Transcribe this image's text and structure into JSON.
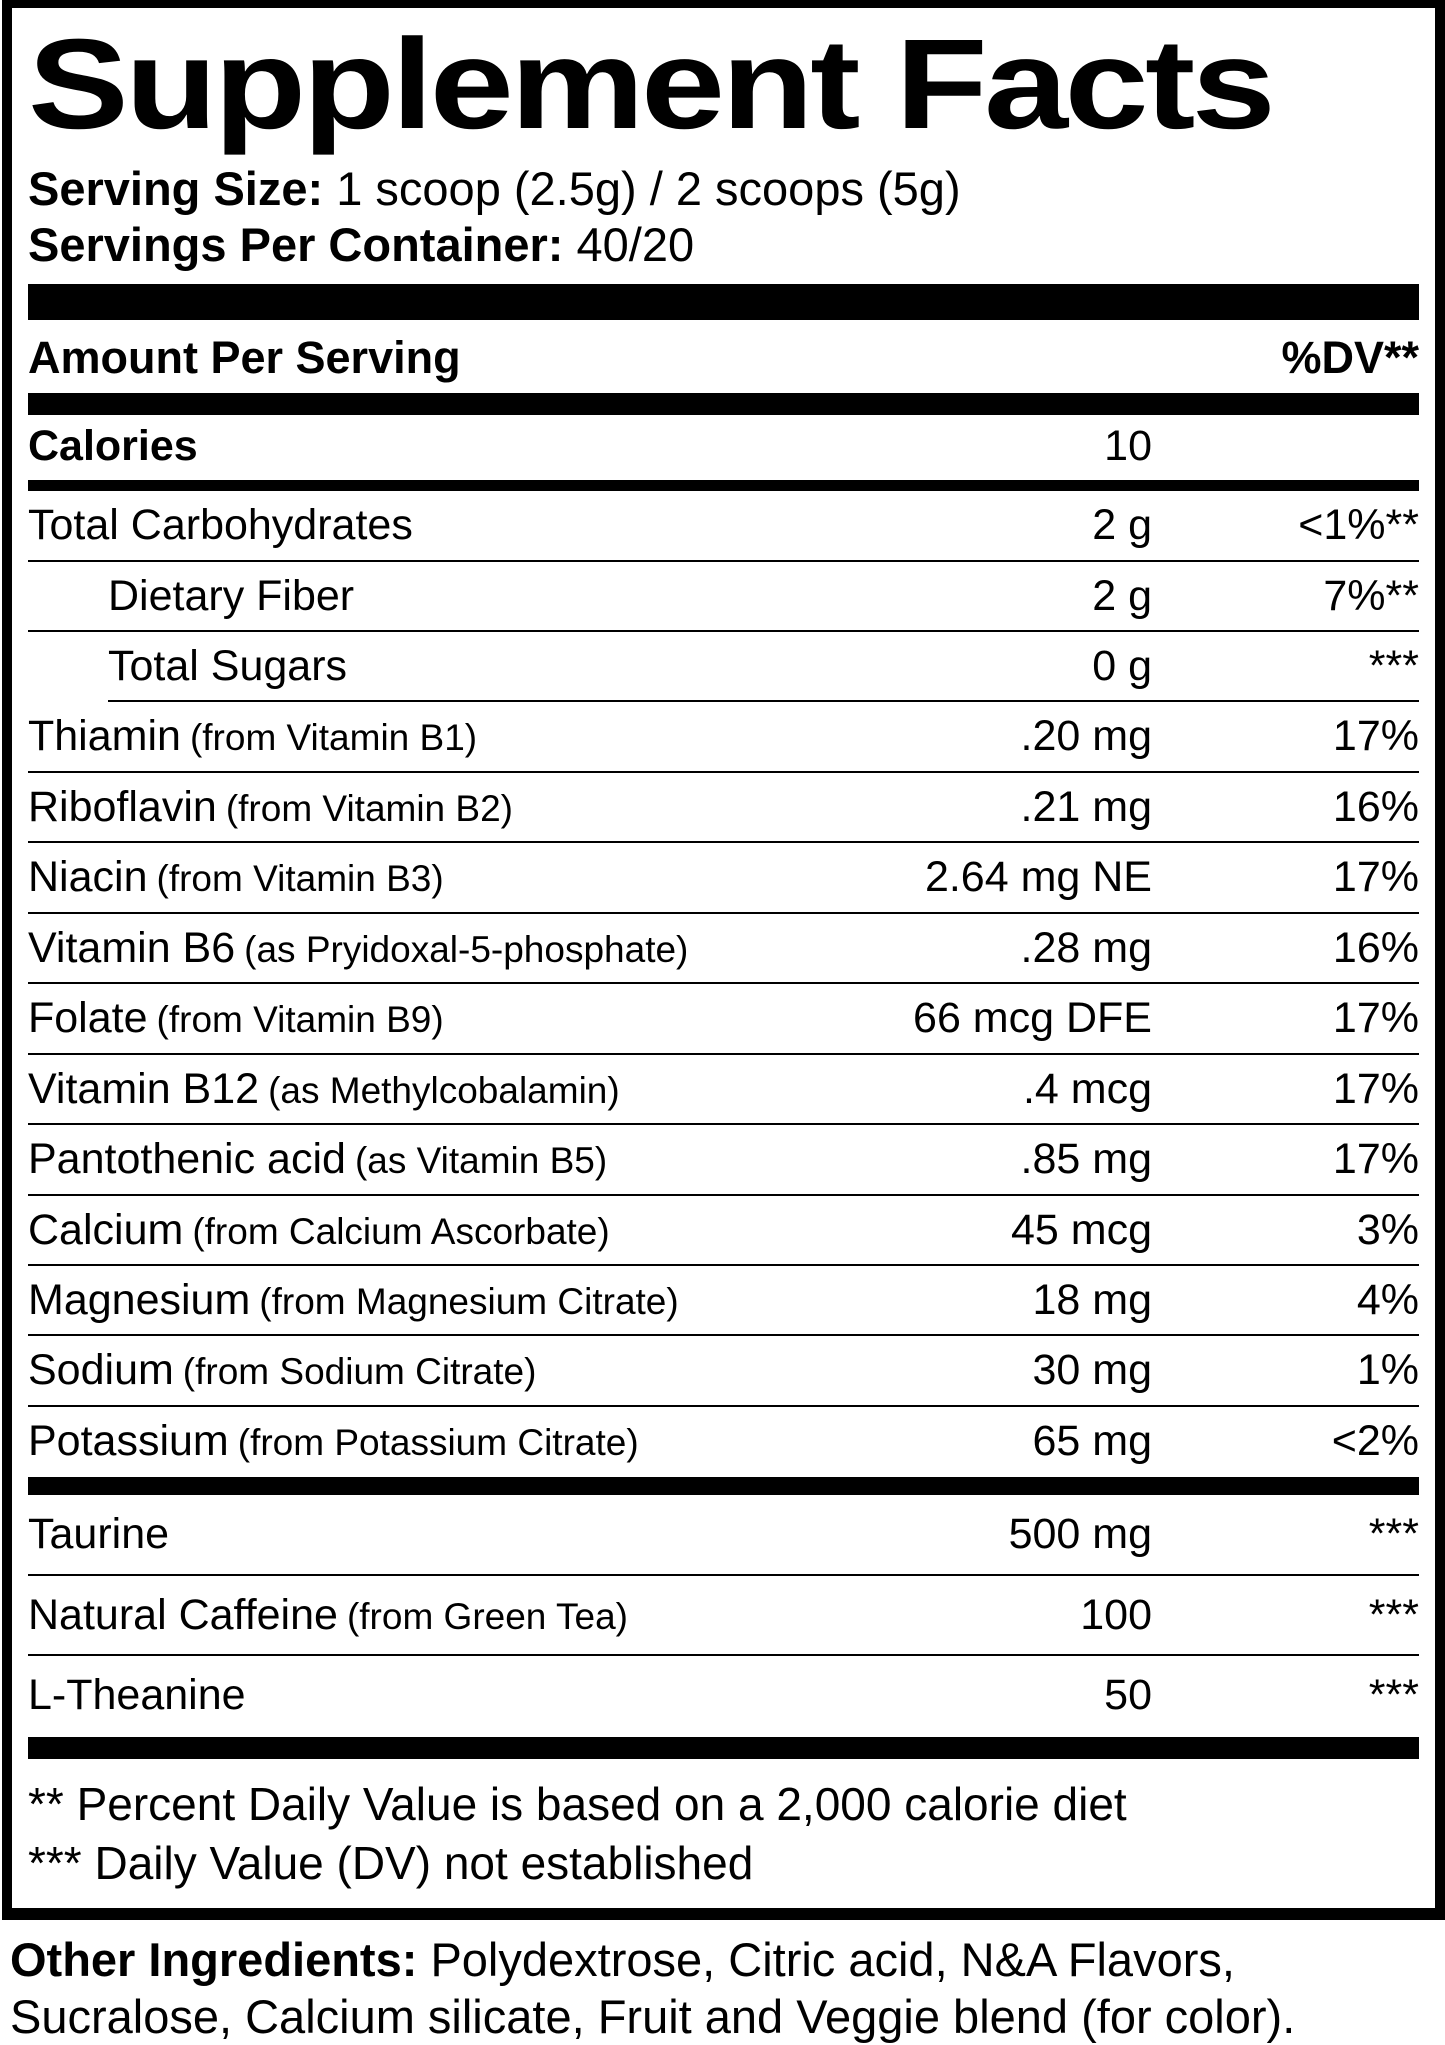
{
  "colors": {
    "ink": "#000000",
    "paper": "#ffffff"
  },
  "title": "Supplement Facts",
  "serving": {
    "size_label": "Serving Size:",
    "size_value": "1 scoop (2.5g) / 2 scoops (5g)",
    "per_container_label": "Servings Per Container:",
    "per_container_value": "40/20"
  },
  "columns": {
    "amount_header": "Amount Per Serving",
    "dv_header": "%DV**"
  },
  "calories": {
    "label": "Calories",
    "value": "10"
  },
  "rows": [
    {
      "name": "Total Carbohydrates",
      "detail": "",
      "amount": "2 g",
      "dv": "<1%**",
      "indent": false,
      "sep": "full"
    },
    {
      "name": "Dietary Fiber",
      "detail": "",
      "amount": "2 g",
      "dv": "7%**",
      "indent": true,
      "sep": "full"
    },
    {
      "name": "Total Sugars",
      "detail": "",
      "amount": "0 g",
      "dv": "***",
      "indent": true,
      "sep": "indent"
    },
    {
      "name": "Thiamin",
      "detail": "(from Vitamin B1)",
      "amount": ".20 mg",
      "dv": "17%",
      "indent": false,
      "sep": "full"
    },
    {
      "name": "Riboflavin",
      "detail": "(from Vitamin B2)",
      "amount": ".21 mg",
      "dv": "16%",
      "indent": false,
      "sep": "full"
    },
    {
      "name": "Niacin",
      "detail": "(from Vitamin B3)",
      "amount": "2.64 mg NE",
      "dv": "17%",
      "indent": false,
      "sep": "full"
    },
    {
      "name": "Vitamin B6",
      "detail": "(as Pryidoxal-5-phosphate)",
      "amount": ".28 mg",
      "dv": "16%",
      "indent": false,
      "sep": "full"
    },
    {
      "name": "Folate",
      "detail": "(from Vitamin B9)",
      "amount": "66 mcg DFE",
      "dv": "17%",
      "indent": false,
      "sep": "full"
    },
    {
      "name": "Vitamin B12",
      "detail": "(as Methylcobalamin)",
      "amount": ".4 mcg",
      "dv": "17%",
      "indent": false,
      "sep": "full"
    },
    {
      "name": "Pantothenic acid",
      "detail": "(as Vitamin B5)",
      "amount": ".85 mg",
      "dv": "17%",
      "indent": false,
      "sep": "full"
    },
    {
      "name": "Calcium",
      "detail": "(from Calcium Ascorbate)",
      "amount": "45 mcg",
      "dv": "3%",
      "indent": false,
      "sep": "full"
    },
    {
      "name": "Magnesium",
      "detail": "(from Magnesium Citrate)",
      "amount": "18 mg",
      "dv": "4%",
      "indent": false,
      "sep": "full"
    },
    {
      "name": "Sodium",
      "detail": "(from Sodium Citrate)",
      "amount": "30 mg",
      "dv": "1%",
      "indent": false,
      "sep": "full"
    },
    {
      "name": "Potassium",
      "detail": "(from Potassium Citrate)",
      "amount": "65 mg",
      "dv": "<2%",
      "indent": false,
      "sep": "none"
    }
  ],
  "extra_rows": [
    {
      "name": "Taurine",
      "detail": "",
      "amount": "500 mg",
      "dv": "***",
      "indent": false,
      "sep": "full"
    },
    {
      "name": "Natural Caffeine",
      "detail": "(from Green Tea)",
      "amount": "100",
      "dv": "***",
      "indent": false,
      "sep": "full"
    },
    {
      "name": "L-Theanine",
      "detail": "",
      "amount": "50",
      "dv": "***",
      "indent": false,
      "sep": "none"
    }
  ],
  "footnotes": [
    "** Percent Daily Value is based on a 2,000 calorie diet",
    "*** Daily Value (DV) not established"
  ],
  "other_ingredients": {
    "label": "Other Ingredients:",
    "text": "Polydextrose, Citric acid, N&A Flavors, Sucralose, Calcium silicate, Fruit and Veggie blend (for color)."
  }
}
